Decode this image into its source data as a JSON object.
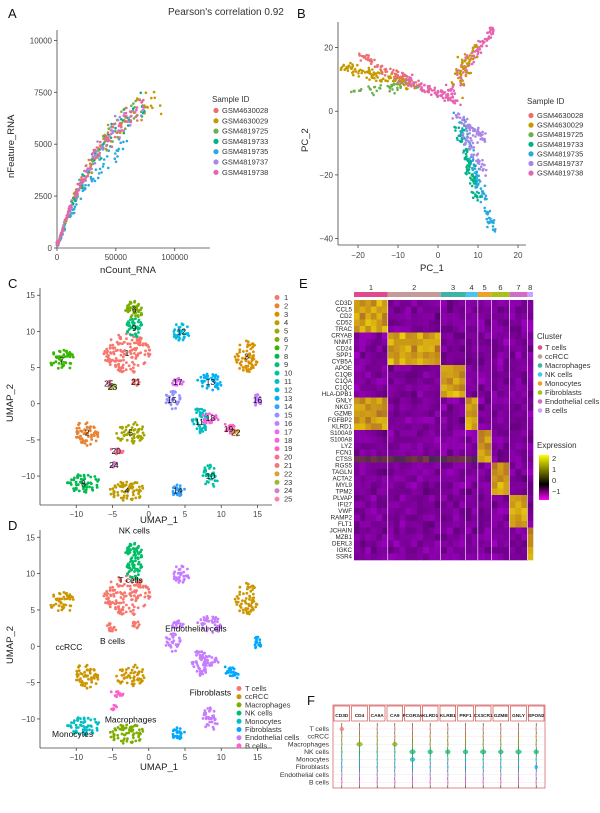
{
  "panels": {
    "A": "A",
    "B": "B",
    "C": "C",
    "D": "D",
    "E": "E",
    "F": "F"
  },
  "colors": {
    "samples": [
      "#ec6f6f",
      "#c49a00",
      "#6ab04c",
      "#00b383",
      "#29a9e0",
      "#a887e6",
      "#e664b0"
    ],
    "clusters": [
      "#f8766d",
      "#ea8331",
      "#d89000",
      "#c09b00",
      "#a3a500",
      "#7cae00",
      "#39b600",
      "#00bb4e",
      "#00bf7d",
      "#00c1a3",
      "#00bfc4",
      "#00bae0",
      "#00b0f6",
      "#35a2ff",
      "#9590ff",
      "#c77cff",
      "#e76bf3",
      "#fa62db",
      "#ff62bc",
      "#ff6c91",
      "#f07a7a",
      "#e0a030",
      "#9fb83a",
      "#d87ac8",
      "#ff7fb0"
    ],
    "celltypes": [
      "#f8766d",
      "#cd9600",
      "#7cae00",
      "#00be67",
      "#00bfc4",
      "#00a9ff",
      "#c77cff",
      "#ff61cc"
    ]
  },
  "A": {
    "title": "Pearson's correlation 0.92",
    "xlabel": "nCount_RNA",
    "ylabel": "nFeature_RNA",
    "xticks": [
      "0",
      "50000",
      "100000"
    ],
    "yticks": [
      "0",
      "2500",
      "5000",
      "7500",
      "10000"
    ],
    "legend_title": "Sample ID",
    "samples": [
      "GSM4630028",
      "GSM4630029",
      "GSM4819725",
      "GSM4819733",
      "GSM4819735",
      "GSM4819737",
      "GSM4819738"
    ]
  },
  "B": {
    "xlabel": "PC_1",
    "ylabel": "PC_2",
    "xticks": [
      "−20",
      "−10",
      "0",
      "10",
      "20"
    ],
    "yticks": [
      "20",
      "0",
      "−20",
      "−40"
    ],
    "legend_title": "Sample ID",
    "samples": [
      "GSM4630028",
      "GSM4630029",
      "GSM4819725",
      "GSM4819733",
      "GSM4819735",
      "GSM4819737",
      "GSM4819738"
    ]
  },
  "C": {
    "xlabel": "UMAP_1",
    "ylabel": "UMAP_2",
    "xticks": [
      "−10",
      "−5",
      "0",
      "5",
      "10",
      "15"
    ],
    "yticks": [
      "15",
      "10",
      "5",
      "0",
      "−5",
      "−10"
    ],
    "clusters": [
      "1",
      "2",
      "3",
      "4",
      "5",
      "6",
      "7",
      "8",
      "9",
      "10",
      "11",
      "12",
      "13",
      "14",
      "15",
      "16",
      "17",
      "18",
      "19",
      "20",
      "21",
      "22",
      "23",
      "24",
      "25"
    ]
  },
  "D": {
    "xlabel": "UMAP_1",
    "ylabel": "UMAP_2",
    "xticks": [
      "−10",
      "−5",
      "0",
      "5",
      "10",
      "15"
    ],
    "yticks": [
      "15",
      "10",
      "5",
      "0",
      "−5",
      "−10"
    ],
    "celltypes": [
      "T cells",
      "ccRCC",
      "Macrophages",
      "NK cells",
      "Monocytes",
      "Fibroblasts",
      "Endothelial cells",
      "B cells"
    ],
    "plot_labels": [
      "NK cells",
      "T cells",
      "B cells",
      "ccRCC",
      "Endothelial cells",
      "Fibroblasts",
      "Monocytes",
      "Macrophages"
    ]
  },
  "E": {
    "cluster_nums": [
      "1",
      "2",
      "3",
      "4",
      "5",
      "6",
      "7",
      "8"
    ],
    "genes": [
      "CD3D",
      "CCL5",
      "CD2",
      "CD52",
      "TRAC",
      "CRYAB",
      "NNMT",
      "CD24",
      "SPP1",
      "CYB5A",
      "APOE",
      "C1QB",
      "C1QA",
      "C1QC",
      "HLA-DPB1",
      "GNLY",
      "NKG7",
      "GZMB",
      "FGFBP2",
      "KLRD1",
      "S100A9",
      "S100A8",
      "LYZ",
      "FCN1",
      "CTSS",
      "RGS5",
      "TAGLN",
      "ACTA2",
      "MYL9",
      "TPM2",
      "PLVAP",
      "IFI27",
      "VWF",
      "RAMP2",
      "FLT1",
      "JCHAIN",
      "MZB1",
      "DERL3",
      "IGKC",
      "SSR4"
    ],
    "legend_cluster_title": "Cluster",
    "legend_clusters": [
      "T cells",
      "ccRCC",
      "Macrophages",
      "NK cells",
      "Monocytes",
      "Fibroblasts",
      "Endothelial cells",
      "B cells"
    ],
    "expr_title": "Expression",
    "expr_ticks": [
      "2",
      "1",
      "0",
      "−1"
    ]
  },
  "F": {
    "genes": [
      "CD3D",
      "CD4",
      "CA9A",
      "CA9",
      "FCGR3A",
      "KLRD1",
      "KLRB1",
      "PRF1",
      "CX3CR1",
      "GZMB",
      "GNLY",
      "SPON2"
    ],
    "rows": [
      "T cells",
      "ccRCC",
      "Macrophages",
      "NK cells",
      "Monocytes",
      "Fibroblasts",
      "Endothelial cells",
      "B cells"
    ]
  },
  "chart_data": [
    {
      "type": "scatter",
      "panel": "A",
      "title": "Pearson's correlation 0.92",
      "xlabel": "nCount_RNA",
      "ylabel": "nFeature_RNA",
      "xlim": [
        0,
        130000
      ],
      "ylim": [
        0,
        10500
      ],
      "correlation": 0.92,
      "series": [
        {
          "name": "GSM4630028"
        },
        {
          "name": "GSM4630029"
        },
        {
          "name": "GSM4819725"
        },
        {
          "name": "GSM4819733"
        },
        {
          "name": "GSM4819735"
        },
        {
          "name": "GSM4819737"
        },
        {
          "name": "GSM4819738"
        }
      ]
    },
    {
      "type": "scatter",
      "panel": "B",
      "xlabel": "PC_1",
      "ylabel": "PC_2",
      "xlim": [
        -25,
        22
      ],
      "ylim": [
        -42,
        28
      ],
      "series": [
        {
          "name": "GSM4630028"
        },
        {
          "name": "GSM4630029"
        },
        {
          "name": "GSM4819725"
        },
        {
          "name": "GSM4819733"
        },
        {
          "name": "GSM4819735"
        },
        {
          "name": "GSM4819737"
        },
        {
          "name": "GSM4819738"
        }
      ]
    },
    {
      "type": "scatter",
      "panel": "C",
      "xlabel": "UMAP_1",
      "ylabel": "UMAP_2",
      "xlim": [
        -15,
        17
      ],
      "ylim": [
        -14,
        16
      ],
      "clusters": 25
    },
    {
      "type": "scatter",
      "panel": "D",
      "xlabel": "UMAP_1",
      "ylabel": "UMAP_2",
      "xlim": [
        -15,
        17
      ],
      "ylim": [
        -14,
        16
      ],
      "series": [
        {
          "name": "T cells"
        },
        {
          "name": "ccRCC"
        },
        {
          "name": "Macrophages"
        },
        {
          "name": "NK cells"
        },
        {
          "name": "Monocytes"
        },
        {
          "name": "Fibroblasts"
        },
        {
          "name": "Endothelial cells"
        },
        {
          "name": "B cells"
        }
      ]
    },
    {
      "type": "heatmap",
      "panel": "E",
      "color_range": [
        -1.5,
        2.5
      ],
      "columns": [
        "1",
        "2",
        "3",
        "4",
        "5",
        "6",
        "7",
        "8"
      ]
    },
    {
      "type": "violin",
      "panel": "F"
    }
  ]
}
